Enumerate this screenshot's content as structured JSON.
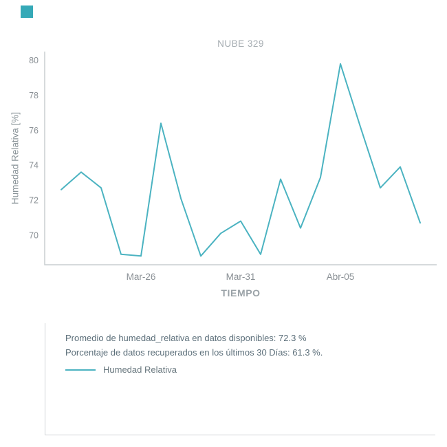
{
  "brand": {
    "color": "#35a9b7"
  },
  "chart_data": {
    "type": "line",
    "title": "NUBE 329",
    "xlabel": "TIEMPO",
    "ylabel": "Humedad Relativa [%]",
    "x": [
      "Mar-22",
      "Mar-23",
      "Mar-24",
      "Mar-25",
      "Mar-26",
      "Mar-27",
      "Mar-28",
      "Mar-29",
      "Mar-30",
      "Mar-31",
      "Abr-01",
      "Abr-02",
      "Abr-03",
      "Abr-04",
      "Abr-05",
      "Abr-06",
      "Abr-07",
      "Abr-08",
      "Abr-09"
    ],
    "series": [
      {
        "name": "Humedad Relativa",
        "values": [
          72.6,
          73.6,
          72.7,
          68.9,
          68.8,
          76.4,
          72.1,
          68.8,
          70.1,
          70.8,
          68.9,
          73.2,
          70.4,
          73.3,
          79.8,
          76.2,
          72.7,
          73.9,
          70.7
        ]
      }
    ],
    "xticks": [
      "Mar-26",
      "Mar-31",
      "Abr-05"
    ],
    "yticks": [
      70,
      72,
      74,
      76,
      78,
      80
    ],
    "ylim": [
      68.3,
      80.5
    ],
    "line_color": "#4bb3c1",
    "axis_color": "#c9ced1",
    "grid": false,
    "legend_position": "info-box-below"
  },
  "info": {
    "average_line": "Promedio de humedad_relativa en datos disponibles: 72.3 %",
    "recovered_line": "Porcentaje de datos recuperados en los últimos 30 Días: 61.3 %."
  }
}
